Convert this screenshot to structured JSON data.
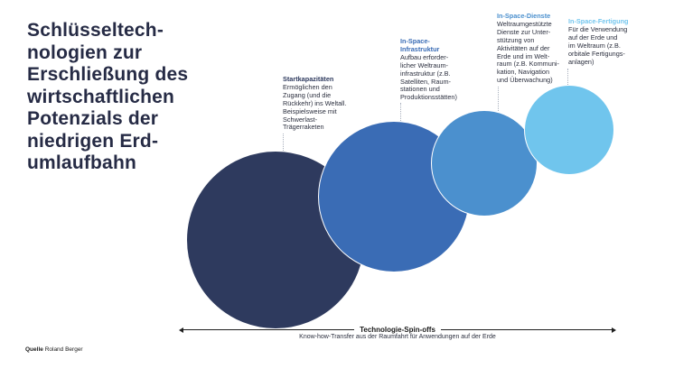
{
  "title": {
    "text": "Schlüsseltech-\nnologien zur\nErschließung des\nwirtschaftlichen\nPotenzials der\nniedrigen Erd-\numlaufbahn",
    "color": "#262b45"
  },
  "categories": [
    {
      "title": "Startkapazitäten",
      "title_color": "#2e3a5e",
      "body": "Ermöglichen den\nZugang (und die\nRückkehr) ins Weltall.\nBeispielsweise mit\nSchwerlast-\nTrägerraketen",
      "circle_color": "#2e3a5e"
    },
    {
      "title": "In-Space-\nInfrastruktur",
      "title_color": "#3a6cb5",
      "body": "Aufbau erforder-\nlicher Weltraum-\ninfrastruktur (z.B.\nSatelliten, Raum-\nstationen und\nProduktionsstätten)",
      "circle_color": "#3a6cb5"
    },
    {
      "title": "In-Space-Dienste",
      "title_color": "#4b90ce",
      "body": "Weltraumgestützte\nDienste zur Unter-\nstützung von\nAktivitäten auf der\nErde und im Welt-\nraum (z.B. Kommuni-\nkation, Navigation\nund Überwachung)",
      "circle_color": "#4b90ce"
    },
    {
      "title": "In-Space-Fertigung",
      "title_color": "#74c6ee",
      "body": "Für die Verwendung\nauf der Erde und\nim Weltraum (z.B.\norbitale Fertigungs-\nanlagen)",
      "circle_color": "#70c5ed"
    }
  ],
  "axis": {
    "label": "Technologie-Spin-offs",
    "sublabel": "Know-how-Transfer aus der Raumfahrt für Anwendungen auf der Erde"
  },
  "source": {
    "prefix": "Quelle",
    "text": "Roland Berger"
  }
}
